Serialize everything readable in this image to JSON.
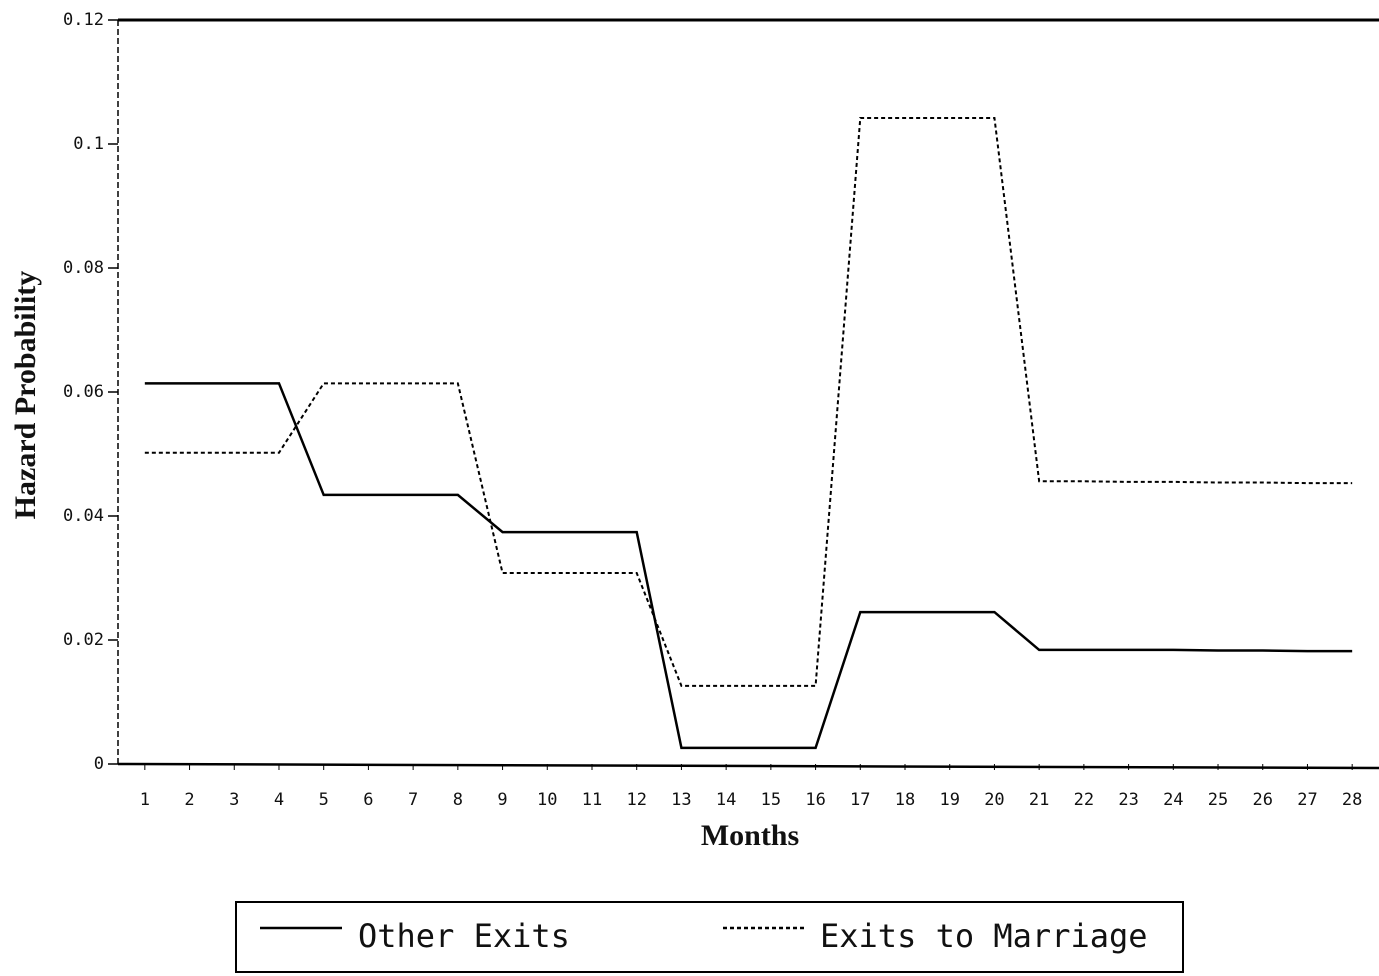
{
  "chart_data": {
    "type": "line",
    "x_label": "Months",
    "y_label": "Hazard Probability",
    "x": [
      1,
      2,
      3,
      4,
      5,
      6,
      7,
      8,
      9,
      10,
      11,
      12,
      13,
      14,
      15,
      16,
      17,
      18,
      19,
      20,
      21,
      22,
      23,
      24,
      25,
      26,
      27,
      28
    ],
    "xlim": [
      0.4,
      28.6
    ],
    "xticks": [
      1,
      2,
      3,
      4,
      5,
      6,
      7,
      8,
      9,
      10,
      11,
      12,
      13,
      14,
      15,
      16,
      17,
      18,
      19,
      20,
      21,
      22,
      23,
      24,
      25,
      26,
      27,
      28
    ],
    "ylim": [
      0,
      0.12
    ],
    "yticks": [
      0,
      0.02,
      0.04,
      0.06,
      0.08,
      0.1,
      0.12
    ],
    "legend": "bottom",
    "series": [
      {
        "name": "Other Exits",
        "color": "#000000",
        "style": "solid",
        "values": [
          0.0614,
          0.0614,
          0.0614,
          0.0614,
          0.0434,
          0.0434,
          0.0434,
          0.0434,
          0.0374,
          0.0374,
          0.0374,
          0.0374,
          0.0026,
          0.0026,
          0.0026,
          0.0026,
          0.0245,
          0.0245,
          0.0245,
          0.0245,
          0.0184,
          0.0184,
          0.0184,
          0.0184,
          0.0183,
          0.0183,
          0.0182,
          0.0182
        ]
      },
      {
        "name": "Exits to Marriage",
        "color": "#000000",
        "style": "dashed",
        "values": [
          0.0502,
          0.0502,
          0.0502,
          0.0502,
          0.0614,
          0.0614,
          0.0614,
          0.0614,
          0.0308,
          0.0308,
          0.0308,
          0.0308,
          0.0126,
          0.0126,
          0.0126,
          0.0126,
          0.1042,
          0.1042,
          0.1042,
          0.1042,
          0.0456,
          0.0456,
          0.0455,
          0.0455,
          0.0454,
          0.0454,
          0.0453,
          0.0453
        ]
      }
    ]
  }
}
